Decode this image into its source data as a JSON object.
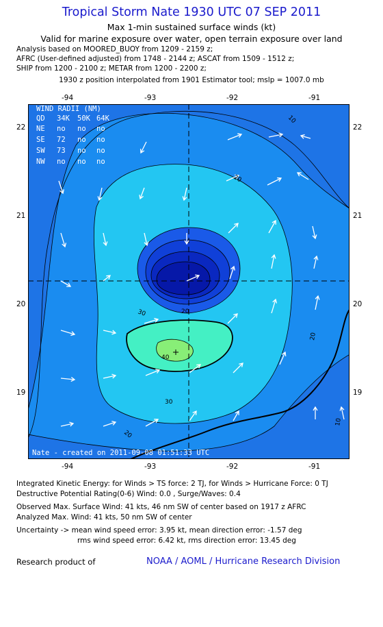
{
  "header": {
    "title": "Tropical Storm Nate 1930 UTC 07 SEP 2011",
    "subtitle1": "Max 1-min sustained surface winds (kt)",
    "subtitle2": "Valid for marine exposure over water, open terrain exposure over land",
    "analysis": [
      "Analysis based on MOORED_BUOY from 1209 - 2159 z;",
      "AFRC (User-defined adjusted) from 1748 - 2144 z; ASCAT from 1509 - 1512 z;",
      "SHIP from 1200 - 2100 z; METAR from 1200 - 2200 z;"
    ],
    "position_note": "1930 z position interpolated from 1901 Estimator tool; mslp = 1007.0 mb"
  },
  "map": {
    "lon_ticks": [
      "-94",
      "-93",
      "-92",
      "-91"
    ],
    "lat_ticks": [
      "22",
      "21",
      "20",
      "19"
    ],
    "lon_range": [
      -94.5,
      -90.55
    ],
    "lat_range": [
      22.3,
      18.21
    ],
    "center": {
      "lon": -92.55,
      "lat": 20.25
    },
    "max_wind_point": {
      "lon": -92.75,
      "lat": 19.46
    },
    "contour_labels": [
      "10",
      "20",
      "20",
      "20",
      "30",
      "30",
      "40",
      "10",
      "20"
    ],
    "created_label": "Nate - created on 2011-09-08 01:51:33 UTC",
    "colors": {
      "outer": "#1e74e6",
      "band20": "#1a8cf0",
      "band30": "#23c6f2",
      "core": "#44f0c4",
      "max": "#88ee77",
      "low1": "#1a5ae8",
      "low2": "#1040d8",
      "low3": "#0a28c0",
      "low4": "#0618a8"
    }
  },
  "wind_radii": {
    "title": "WIND RADII (NM)",
    "columns": [
      "QD",
      "34K",
      "50K",
      "64K"
    ],
    "rows": [
      {
        "quad": "NE",
        "v34": "no",
        "v50": "no",
        "v64": "no"
      },
      {
        "quad": "SE",
        "v34": "72",
        "v50": "no",
        "v64": "no"
      },
      {
        "quad": "SW",
        "v34": "73",
        "v50": "no",
        "v64": "no"
      },
      {
        "quad": "NW",
        "v34": "no",
        "v50": "no",
        "v64": "no"
      }
    ]
  },
  "footer": {
    "ike": "Integrated Kinetic Energy:  for Winds > TS force: 2 TJ,  for Winds > Hurricane Force: 0 TJ",
    "dpr": "Destructive Potential Rating(0-6)   Wind: 0.0 , Surge/Waves: 0.4",
    "observed": "Observed Max. Surface Wind: 41 kts, 46 nm SW of center based on 1917 z AFRC",
    "analyzed": "Analyzed Max. Wind: 41 kts, 50 nm SW of center",
    "unc1": "Uncertainty -> mean wind speed error: 3.95 kt,   mean direction error:  -1.57 deg",
    "unc2": "rms wind speed error: 6.42 kt,   rms direction error: 13.45 deg",
    "research": "Research product of",
    "org": "NOAA / AOML / Hurricane Research Division"
  }
}
